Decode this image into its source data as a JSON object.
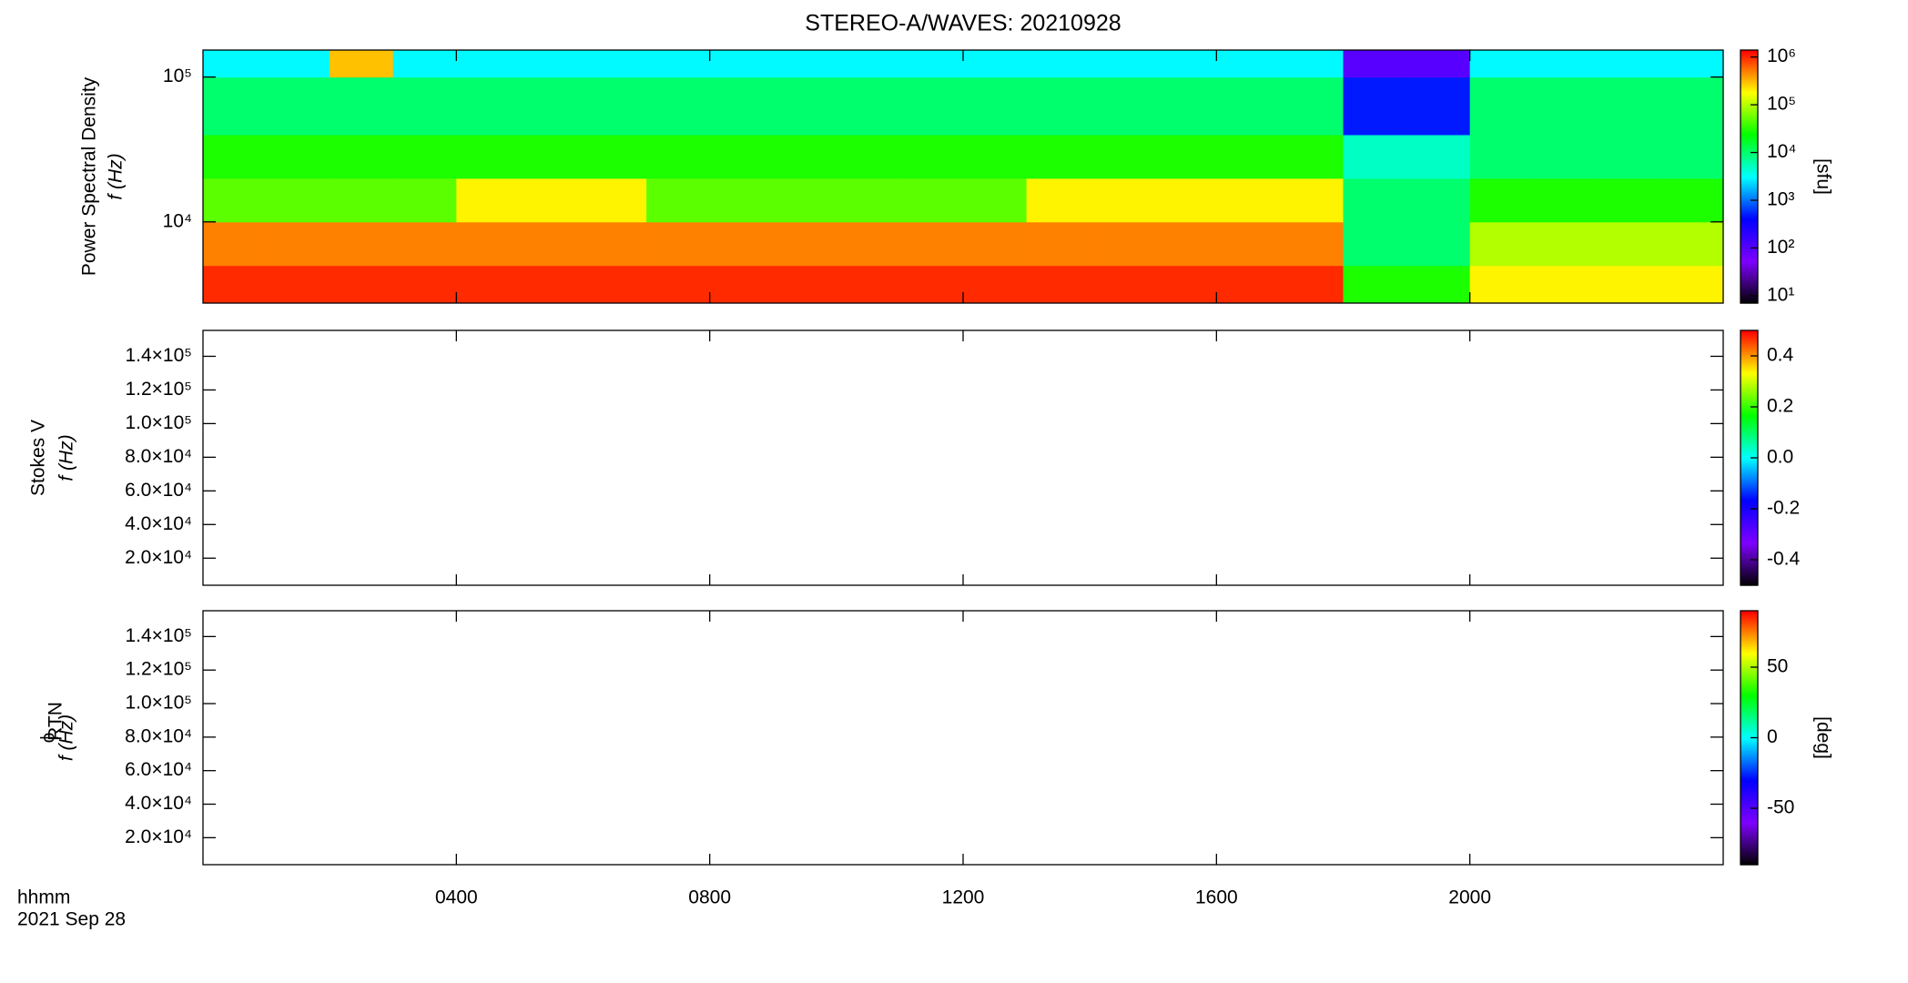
{
  "chart_data": [
    {
      "type": "heatmap",
      "title": "STEREO-A/WAVES: 20210928",
      "ylabel": "Power Spectral Density",
      "ylabel2": "f (Hz)",
      "xlim": [
        0,
        24
      ],
      "xticks": [
        {
          "value": 4,
          "label": "0400"
        },
        {
          "value": 8,
          "label": "0800"
        },
        {
          "value": 12,
          "label": "1200"
        },
        {
          "value": 16,
          "label": "1600"
        },
        {
          "value": 20,
          "label": "2000"
        }
      ],
      "ylog": true,
      "ylim": [
        2750,
        153600
      ],
      "yticks": [
        {
          "value": 10000,
          "label": "10⁴"
        },
        {
          "value": 100000,
          "label": "10⁵"
        }
      ],
      "time_bins": [
        0,
        1,
        2,
        3,
        4,
        5,
        6,
        7,
        8,
        9,
        10,
        11,
        12,
        13,
        14,
        15,
        16,
        17,
        18,
        19,
        20,
        21,
        22,
        23,
        24
      ],
      "freq_bins": [
        2750,
        5000,
        10000,
        20000,
        40000,
        100000,
        153600
      ],
      "values": [
        [
          1000000,
          1000000,
          1000000,
          1000000,
          1000000,
          1000000,
          1000000,
          1000000,
          1000000,
          1000000,
          1000000,
          1000000,
          1000000,
          1000000,
          1000000,
          1000000,
          1000000,
          1000000,
          30000,
          30000,
          200000,
          200000,
          200000,
          200000
        ],
        [
          500000,
          500000,
          500000,
          500000,
          500000,
          500000,
          500000,
          500000,
          500000,
          500000,
          500000,
          500000,
          500000,
          500000,
          500000,
          500000,
          500000,
          500000,
          10000,
          10000,
          100000,
          100000,
          100000,
          100000
        ],
        [
          50000,
          50000,
          50000,
          50000,
          200000,
          200000,
          200000,
          50000,
          50000,
          50000,
          50000,
          50000,
          50000,
          200000,
          200000,
          200000,
          200000,
          200000,
          10000,
          10000,
          30000,
          30000,
          30000,
          30000
        ],
        [
          30000,
          30000,
          30000,
          30000,
          30000,
          30000,
          30000,
          30000,
          30000,
          30000,
          30000,
          30000,
          30000,
          30000,
          30000,
          30000,
          30000,
          30000,
          5000,
          5000,
          10000,
          10000,
          10000,
          10000
        ],
        [
          10000,
          10000,
          10000,
          10000,
          10000,
          10000,
          10000,
          10000,
          10000,
          10000,
          10000,
          10000,
          10000,
          10000,
          10000,
          10000,
          10000,
          10000,
          500,
          500,
          10000,
          10000,
          10000,
          10000
        ],
        [
          3000,
          3000,
          300000,
          3000,
          3000,
          3000,
          3000,
          3000,
          3000,
          3000,
          3000,
          3000,
          3000,
          3000,
          3000,
          3000,
          3000,
          3000,
          100,
          100,
          3000,
          3000,
          3000,
          3000
        ]
      ],
      "colormap": [
        "#000000",
        "#7f00ff",
        "#0000ff",
        "#00ffff",
        "#00ff00",
        "#ffff00",
        "#ff0000"
      ],
      "colorbar": {
        "label": "[sfu]",
        "log": true,
        "lim": [
          7,
          1400000
        ],
        "ticks": [
          {
            "value": 10,
            "label": "10¹"
          },
          {
            "value": 100,
            "label": "10²"
          },
          {
            "value": 1000,
            "label": "10³"
          },
          {
            "value": 10000,
            "label": "10⁴"
          },
          {
            "value": 100000,
            "label": "10⁵"
          },
          {
            "value": 1000000,
            "label": "10⁶"
          }
        ]
      }
    },
    {
      "type": "heatmap",
      "ylabel": "Stokes V",
      "ylabel2": "f (Hz)",
      "xlim": [
        0,
        24
      ],
      "xticks": [
        {
          "value": 4,
          "label": "0400"
        },
        {
          "value": 8,
          "label": "0800"
        },
        {
          "value": 12,
          "label": "1200"
        },
        {
          "value": 16,
          "label": "1600"
        },
        {
          "value": 20,
          "label": "2000"
        }
      ],
      "ylim": [
        3900,
        155400
      ],
      "yticks": [
        {
          "value": 20000,
          "label": "2.0×10⁴"
        },
        {
          "value": 40000,
          "label": "4.0×10⁴"
        },
        {
          "value": 60000,
          "label": "6.0×10⁴"
        },
        {
          "value": 80000,
          "label": "8.0×10⁴"
        },
        {
          "value": 100000,
          "label": "1.0×10⁵"
        },
        {
          "value": 120000,
          "label": "1.2×10⁵"
        },
        {
          "value": 140000,
          "label": "1.4×10⁵"
        }
      ],
      "colormap": [
        "#000000",
        "#7f00ff",
        "#0000ff",
        "#00ffff",
        "#00ff00",
        "#ffff00",
        "#ff0000"
      ],
      "colorbar": {
        "lim": [
          -0.5,
          0.5
        ],
        "ticks": [
          -0.4,
          -0.2,
          {
            "value": 0,
            "label": "0.0"
          },
          0.2,
          0.4
        ]
      }
    },
    {
      "type": "heatmap",
      "ylabel": "ϕ",
      "ylabel_sub": "RTN",
      "ylabel2": "f (Hz)",
      "xlabel": "hhmm",
      "date_label": "2021 Sep 28",
      "xlim": [
        0,
        24
      ],
      "xticks": [
        {
          "value": 4,
          "label": "0400"
        },
        {
          "value": 8,
          "label": "0800"
        },
        {
          "value": 12,
          "label": "1200"
        },
        {
          "value": 16,
          "label": "1600"
        },
        {
          "value": 20,
          "label": "2000"
        }
      ],
      "ylim": [
        3900,
        155400
      ],
      "yticks": [
        {
          "value": 20000,
          "label": "2.0×10⁴"
        },
        {
          "value": 40000,
          "label": "4.0×10⁴"
        },
        {
          "value": 60000,
          "label": "6.0×10⁴"
        },
        {
          "value": 80000,
          "label": "8.0×10⁴"
        },
        {
          "value": 100000,
          "label": "1.0×10⁵"
        },
        {
          "value": 120000,
          "label": "1.2×10⁵"
        },
        {
          "value": 140000,
          "label": "1.4×10⁵"
        }
      ],
      "colormap": [
        "#000000",
        "#7f00ff",
        "#0000ff",
        "#00ffff",
        "#00ff00",
        "#ffff00",
        "#ff0000"
      ],
      "colorbar": {
        "label": "[deg]",
        "lim": [
          -90,
          90
        ],
        "ticks": [
          -50,
          0,
          50
        ]
      }
    }
  ]
}
